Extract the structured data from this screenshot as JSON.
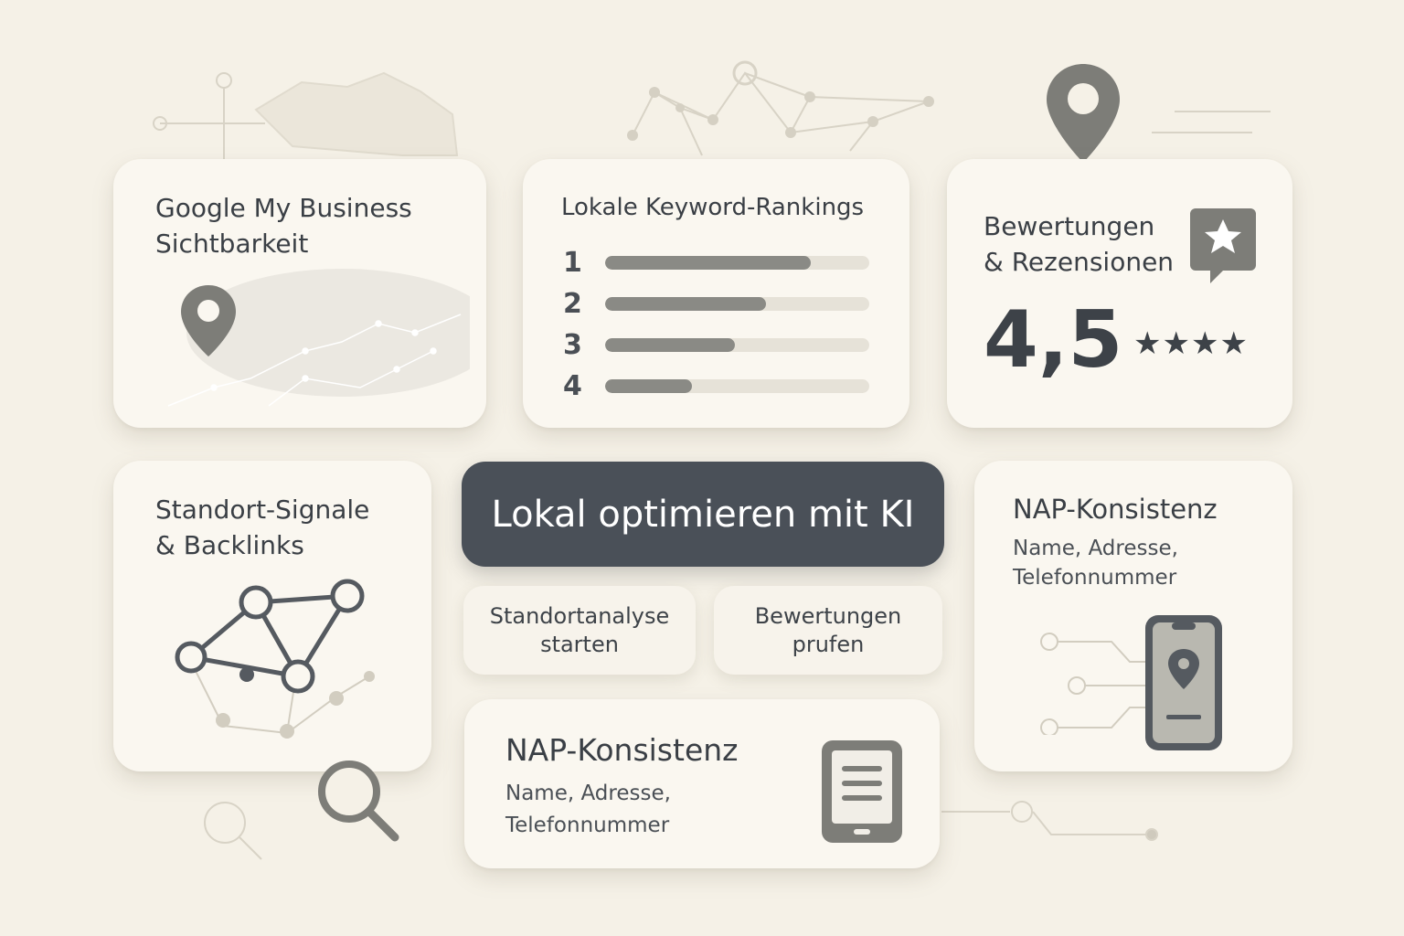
{
  "colors": {
    "background": "#f5f1e7",
    "card": "#faf7f0",
    "primary_button": "#4a5058",
    "icon_gray": "#7d7d78",
    "text": "#3a3f45"
  },
  "gmb": {
    "title_line1": "Google My Business",
    "title_line2": "Sichtbarkeit",
    "icon": "map-pin-icon"
  },
  "rankings": {
    "title": "Lokale Keyword-Rankings",
    "items": [
      {
        "rank": "1",
        "fill_percent": 78
      },
      {
        "rank": "2",
        "fill_percent": 61
      },
      {
        "rank": "3",
        "fill_percent": 49
      },
      {
        "rank": "4",
        "fill_percent": 33
      }
    ]
  },
  "reviews": {
    "title_line1": "Bewertungen",
    "title_line2": "& Rezensionen",
    "score": "4,5",
    "stars_shown": 4,
    "icon": "star-speech-bubble-icon"
  },
  "signals": {
    "title_line1": "Standort-Signale",
    "title_line2": "& Backlinks",
    "icon": "network-graph-icon"
  },
  "cta": {
    "label": "Lokal optimieren mit KI"
  },
  "actions": [
    {
      "label": "Standortanalyse\nstarten"
    },
    {
      "label": "Bewertungen\nprufen"
    }
  ],
  "nap_right": {
    "title": "NAP-Konsistenz",
    "line1": "Name, Adresse,",
    "line2": "Telefonnummer",
    "icon": "smartphone-pin-icon"
  },
  "nap_bottom": {
    "title": "NAP-Konsistenz",
    "line1": "Name, Adresse,",
    "line2": "Telefonnummer",
    "icon": "tablet-document-icon"
  }
}
